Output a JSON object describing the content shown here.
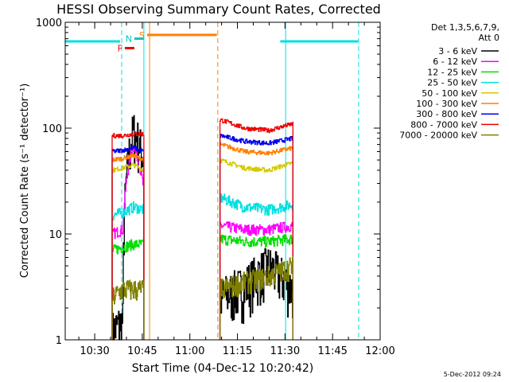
{
  "chart_data": {
    "type": "line",
    "title": "HESSI Observing Summary Count Rates, Corrected",
    "xlabel": "Start Time (04-Dec-12 10:20:42)",
    "ylabel": "Corrected Count Rate (s⁻¹ detector⁻¹)",
    "yscale": "log",
    "ylim": [
      1,
      1000
    ],
    "xlim_minutes": [
      20.7,
      120
    ],
    "x_ticks": [
      "10:30",
      "10:45",
      "11:00",
      "11:15",
      "11:30",
      "11:45",
      "12:00"
    ],
    "y_ticks": [
      "1",
      "10",
      "100",
      "1000"
    ],
    "legend_header": [
      "Det 1,3,5,6,7,9,",
      "Att 0"
    ],
    "legend_placement": "right",
    "footer_date": "5-Dec-2012 09:24",
    "segments": [
      [
        35.5,
        45.5
      ],
      [
        69.5,
        92.5
      ]
    ],
    "series": [
      {
        "name": "3 - 6 keV",
        "color": "#000000",
        "seg1": [
          1.2,
          1.5,
          95,
          50
        ],
        "seg2": [
          2.5,
          3.2,
          5,
          3
        ]
      },
      {
        "name": "6 - 12 keV",
        "color": "#ff00ff",
        "seg1": [
          10,
          11,
          70,
          25
        ],
        "seg2": [
          12,
          11,
          11,
          12
        ]
      },
      {
        "name": "12 - 25 keV",
        "color": "#00dd00",
        "seg1": [
          7,
          7.5,
          8,
          8
        ],
        "seg2": [
          9,
          8.5,
          8.5,
          9
        ]
      },
      {
        "name": "25 - 50 keV",
        "color": "#00e0e0",
        "seg1": [
          15,
          16,
          18,
          17
        ],
        "seg2": [
          22,
          18,
          17,
          19
        ]
      },
      {
        "name": "50 - 100 keV",
        "color": "#d4c800",
        "seg1": [
          40,
          42,
          45,
          40
        ],
        "seg2": [
          50,
          42,
          40,
          47
        ]
      },
      {
        "name": "100 - 300 keV",
        "color": "#ff8000",
        "seg1": [
          50,
          52,
          55,
          50
        ],
        "seg2": [
          70,
          60,
          58,
          65
        ]
      },
      {
        "name": "300 - 800 keV",
        "color": "#0000ee",
        "seg1": [
          60,
          62,
          65,
          60
        ],
        "seg2": [
          85,
          75,
          72,
          80
        ]
      },
      {
        "name": "800 - 7000 keV",
        "color": "#ee0000",
        "seg1": [
          85,
          85,
          88,
          88
        ],
        "seg2": [
          120,
          100,
          95,
          110
        ]
      },
      {
        "name": "7000 - 20000 keV",
        "color": "#808000",
        "seg1": [
          2.5,
          3,
          3,
          3
        ],
        "seg2": [
          3,
          3.5,
          4,
          5
        ]
      }
    ],
    "annotations": [
      {
        "label": "F",
        "color": "#ee0000",
        "x_start": 39.5,
        "x_end": 42.5,
        "y": 570
      },
      {
        "label": "N",
        "color": "#00c8c8",
        "x_start": 42.5,
        "x_end": 45.5,
        "y": 700
      },
      {
        "label": "S",
        "color": "#ff8000",
        "x_start": 46.5,
        "x_end": 68.5,
        "y": 760
      }
    ],
    "attenuator_levels": [
      {
        "color": "#00e0e0",
        "x_start": 20.7,
        "x_end": 38.0,
        "y": 660
      },
      {
        "color": "#00e0e0",
        "x_start": 88.5,
        "x_end": 113.0,
        "y": 660
      }
    ],
    "vlines": [
      {
        "x": 20.7,
        "color": "#00e0e0",
        "style": "solid"
      },
      {
        "x": 38.5,
        "color": "#00e0e0",
        "style": "dashed"
      },
      {
        "x": 45.5,
        "color": "#00e0e0",
        "style": "solid"
      },
      {
        "x": 47.3,
        "color": "#ff8000",
        "style": "solid"
      },
      {
        "x": 68.8,
        "color": "#ff8000",
        "style": "dashed"
      },
      {
        "x": 90.2,
        "color": "#00e0e0",
        "style": "solid"
      },
      {
        "x": 113.2,
        "color": "#00e0e0",
        "style": "dashed"
      }
    ]
  }
}
